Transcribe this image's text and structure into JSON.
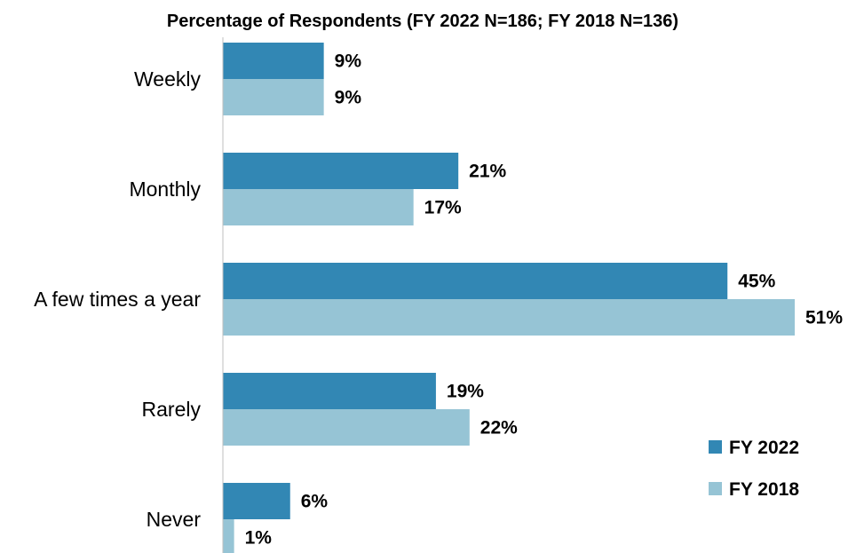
{
  "chart_data": {
    "type": "bar",
    "orientation": "horizontal",
    "title": "Percentage of Respondents (FY 2022 N=186; FY 2018 N=136)",
    "xlabel": "",
    "ylabel": "",
    "categories": [
      "Weekly",
      "Monthly",
      "A few times a year",
      "Rarely",
      "Never"
    ],
    "series": [
      {
        "name": "FY 2022",
        "values": [
          9,
          21,
          45,
          19,
          6
        ],
        "labels": [
          "9%",
          "21%",
          "45%",
          "19%",
          "6%"
        ],
        "color": "#3287b4"
      },
      {
        "name": "FY 2018",
        "values": [
          9,
          17,
          51,
          22,
          1
        ],
        "labels": [
          "9%",
          "17%",
          "51%",
          "22%",
          "1%"
        ],
        "color": "#96c4d5"
      }
    ],
    "xlim": [
      0,
      51
    ],
    "grid": false,
    "legend": "bottom-right"
  }
}
